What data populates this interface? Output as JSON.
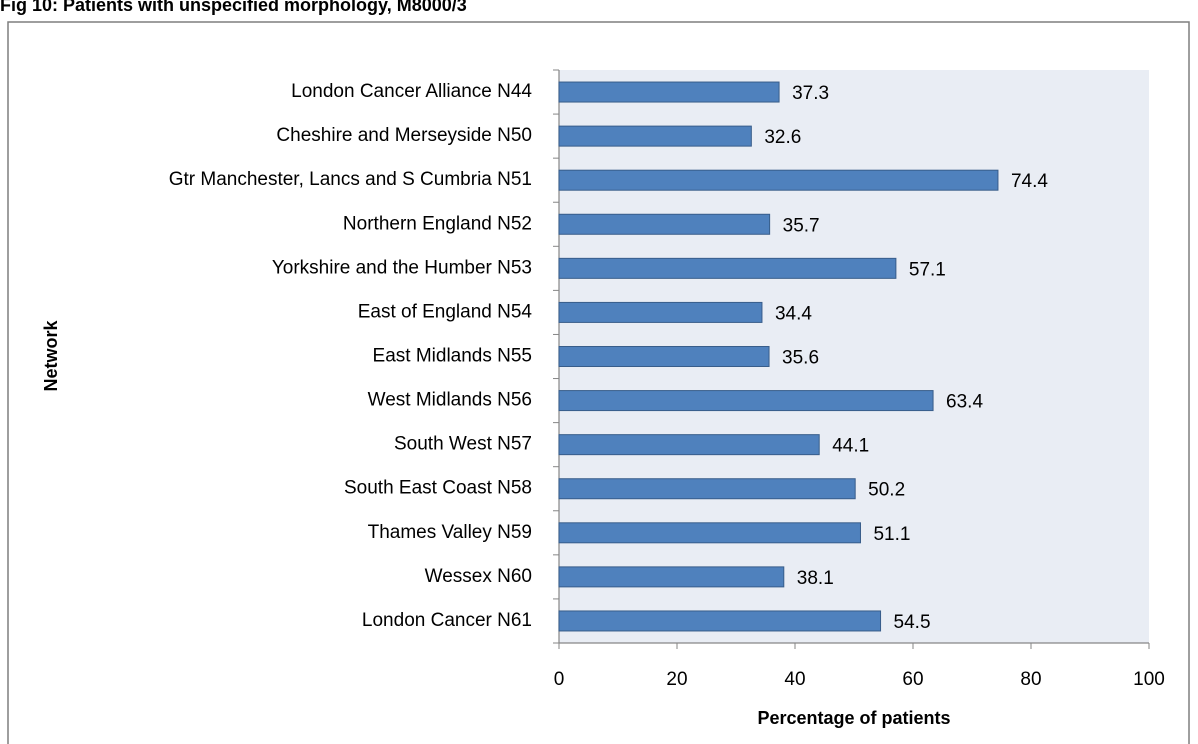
{
  "chart_data": {
    "type": "barh",
    "title": "Fig 10: Patients with unspecified morphology, M8000/3",
    "x_label": "Percentage of patients",
    "y_label": "Network",
    "categories": [
      "London Cancer Alliance N44",
      "Cheshire and Merseyside N50",
      "Gtr Manchester, Lancs and S Cumbria N51",
      "Northern England N52",
      "Yorkshire and the Humber N53",
      "East of England N54",
      "East Midlands N55",
      "West Midlands N56",
      "South West N57",
      "South East Coast N58",
      "Thames Valley N59",
      "Wessex N60",
      "London Cancer N61"
    ],
    "values": [
      37.3,
      32.6,
      74.4,
      35.7,
      57.1,
      34.4,
      35.6,
      63.4,
      44.1,
      50.2,
      51.1,
      38.1,
      54.5
    ],
    "value_labels": [
      "37.3",
      "32.6",
      "74.4",
      "35.7",
      "57.1",
      "34.4",
      "35.6",
      "63.4",
      "44.1",
      "50.2",
      "51.1",
      "38.1",
      "54.5"
    ],
    "color": "#4f81bd",
    "xlim": [
      0,
      100
    ],
    "xticks": [
      0,
      20,
      40,
      60,
      80,
      100
    ],
    "grid": false
  }
}
